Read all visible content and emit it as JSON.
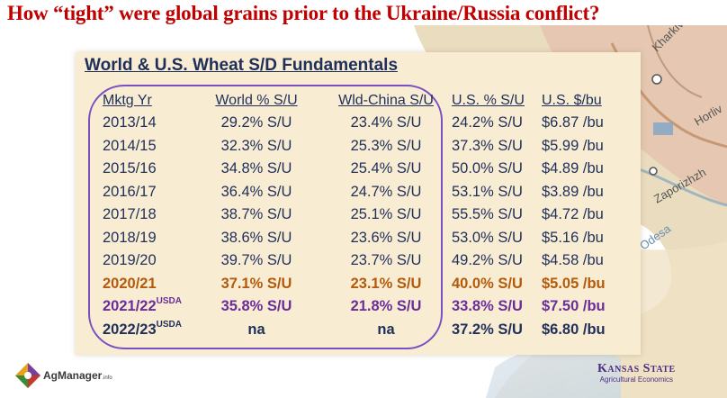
{
  "slide_title": "How “tight” were global grains prior to the Ukraine/Russia conflict?",
  "panel_title": "World & U.S. Wheat S/D Fundamentals",
  "headers": [
    "Mktg Yr",
    "World % S/U",
    "Wld-China S/U",
    "U.S. % S/U",
    "U.S. $/bu"
  ],
  "rows": [
    {
      "year": "2013/14",
      "sup": "",
      "world": "29.2% S/U",
      "wld_china": "23.4% S/U",
      "us": "24.2% S/U",
      "price": "$6.87 /bu"
    },
    {
      "year": "2014/15",
      "sup": "",
      "world": "32.3% S/U",
      "wld_china": "25.3% S/U",
      "us": "37.3% S/U",
      "price": "$5.99 /bu"
    },
    {
      "year": "2015/16",
      "sup": "",
      "world": "34.8% S/U",
      "wld_china": "25.4% S/U",
      "us": "50.0% S/U",
      "price": "$4.89 /bu"
    },
    {
      "year": "2016/17",
      "sup": "",
      "world": "36.4% S/U",
      "wld_china": "24.7% S/U",
      "us": "53.1% S/U",
      "price": "$3.89 /bu"
    },
    {
      "year": "2017/18",
      "sup": "",
      "world": "38.7% S/U",
      "wld_china": "25.1% S/U",
      "us": "55.5% S/U",
      "price": "$4.72 /bu"
    },
    {
      "year": "2018/19",
      "sup": "",
      "world": "38.6% S/U",
      "wld_china": "23.6% S/U",
      "us": "53.0% S/U",
      "price": "$5.16 /bu"
    },
    {
      "year": "2019/20",
      "sup": "",
      "world": "39.7% S/U",
      "wld_china": "23.7% S/U",
      "us": "49.2% S/U",
      "price": "$4.58 /bu"
    },
    {
      "year": "2020/21",
      "sup": "",
      "world": "37.1% S/U",
      "wld_china": "23.1% S/U",
      "us": "40.0% S/U",
      "price": "$5.05 /bu"
    },
    {
      "year": "2021/22",
      "sup": "USDA",
      "world": "35.8% S/U",
      "wld_china": "21.8% S/U",
      "us": "33.8% S/U",
      "price": "$7.50 /bu"
    },
    {
      "year": "2022/23",
      "sup": "USDA",
      "world": "na",
      "wld_china": "na",
      "us": "37.2% S/U",
      "price": "$6.80 /bu"
    }
  ],
  "map_labels": [
    "Kharkiv",
    "Horliv",
    "Zaporizhzh",
    "Odesa"
  ],
  "logos": {
    "agmanager": "AgManager",
    "agmanager_suffix": ".info",
    "ksu": "Kansas State",
    "ksu_sub": "Agricultural Economics"
  },
  "colors": {
    "title": "#c00000",
    "panel_bg": "#f8ecd3",
    "text": "#1f2f5a",
    "highlight_2020": "#b35a0d",
    "highlight_2021": "#6a2d9a",
    "oval": "#7a4fc0"
  }
}
